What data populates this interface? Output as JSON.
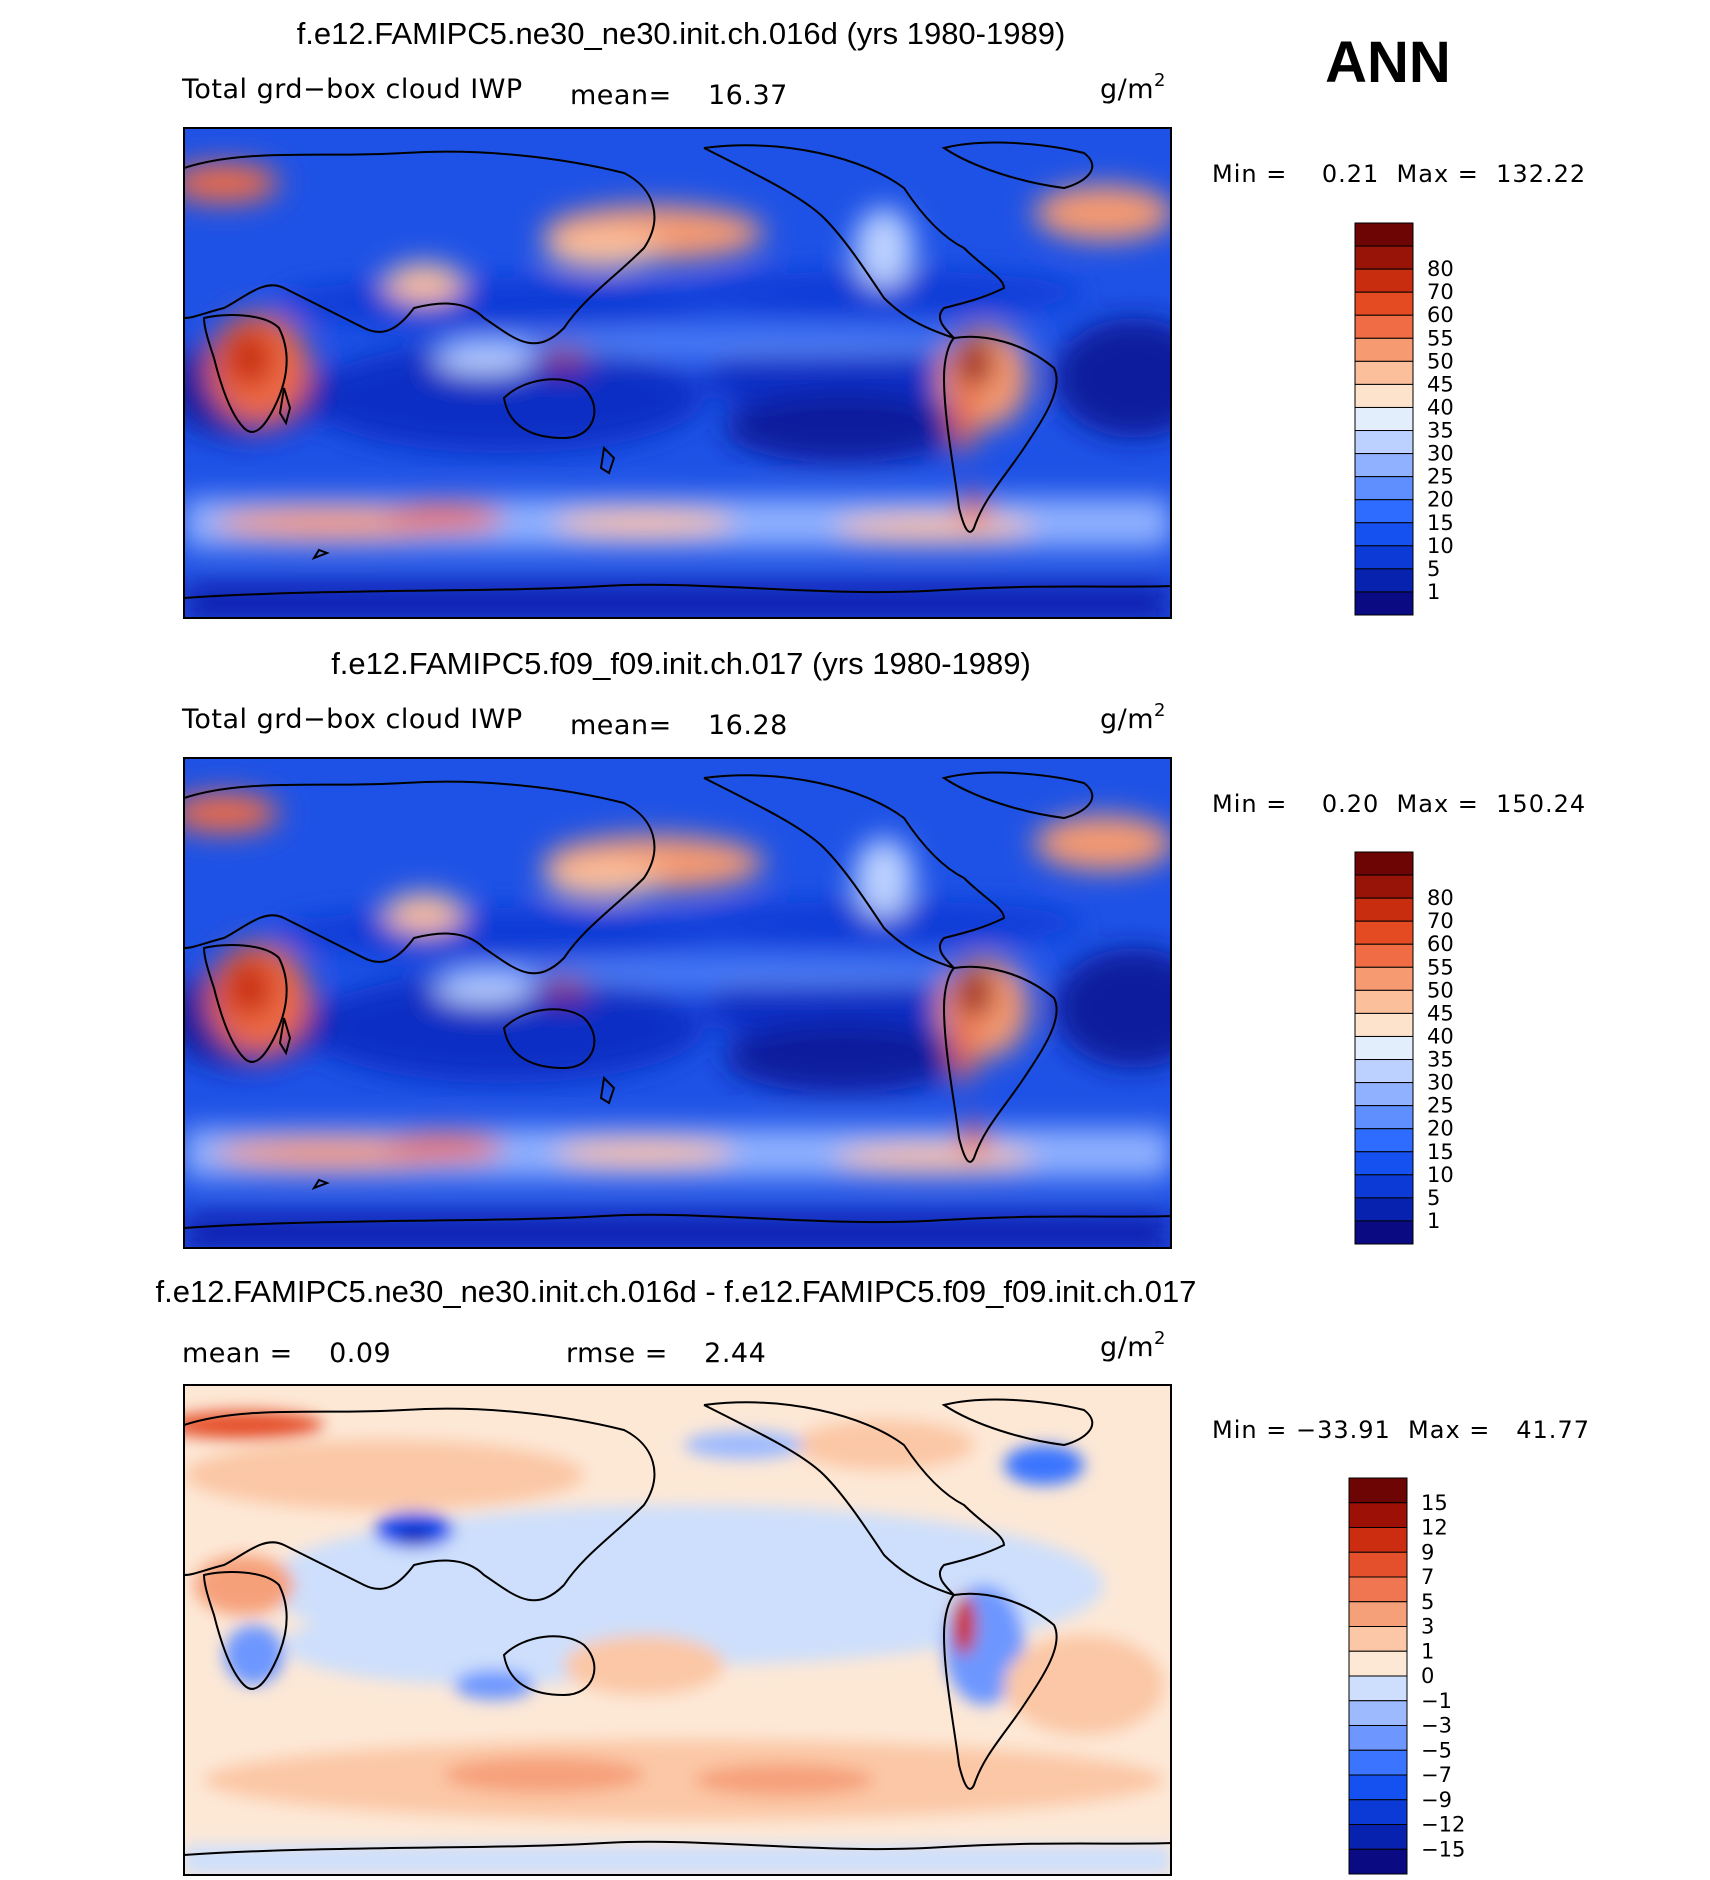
{
  "season": "ANN",
  "colors": {
    "abs_scale": [
      "#0a0a82",
      "#0822b0",
      "#0b3ad6",
      "#1550f0",
      "#2e6cff",
      "#5f8fff",
      "#8fb1ff",
      "#bcd1ff",
      "#e3eefc",
      "#fde3cc",
      "#fbbf9b",
      "#f59a71",
      "#ef6c45",
      "#e44b22",
      "#c92d0f",
      "#991408",
      "#6e0505"
    ],
    "diff_scale": [
      "#0a0a82",
      "#0822b0",
      "#0b3ad6",
      "#1550f0",
      "#3a74ff",
      "#6d97ff",
      "#9dbaff",
      "#cddffc",
      "#fde8d6",
      "#fbc7a6",
      "#f6a07a",
      "#ef7651",
      "#e5502c",
      "#cc2d10",
      "#9c1006",
      "#6e0505"
    ],
    "land_outline": "#000000"
  },
  "panels": [
    {
      "id": "top",
      "title": "f.e12.FAMIPC5.ne30_ne30.init.ch.016d (yrs 1980-1989)",
      "left_label": "Total grd−box cloud IWP",
      "mean_label": "mean=",
      "mean_value": "16.37",
      "units_base": "g/m",
      "units_exp": "2",
      "minmax_text": "Min =    0.21  Max =  132.22"
    },
    {
      "id": "middle",
      "title": "f.e12.FAMIPC5.f09_f09.init.ch.017 (yrs 1980-1989)",
      "left_label": "Total grd−box cloud IWP",
      "mean_label": "mean=",
      "mean_value": "16.28",
      "units_base": "g/m",
      "units_exp": "2",
      "minmax_text": "Min =    0.20  Max =  150.24"
    },
    {
      "id": "bottom",
      "title": "f.e12.FAMIPC5.ne30_ne30.init.ch.016d - f.e12.FAMIPC5.f09_f09.init.ch.017",
      "mean_text": "mean =    0.09",
      "rmse_text": "rmse =    2.44",
      "units_base": "g/m",
      "units_exp": "2",
      "minmax_text": "Min = −33.91  Max =   41.77"
    }
  ],
  "chart_data": [
    {
      "type": "heatmap",
      "title": "f.e12.FAMIPC5.ne30_ne30.init.ch.016d (yrs 1980-1989)",
      "variable": "Total grd-box cloud IWP",
      "units": "g/m2",
      "mean": 16.37,
      "min": 0.21,
      "max": 132.22,
      "colorbar_levels": [
        "80",
        "70",
        "60",
        "55",
        "50",
        "45",
        "40",
        "35",
        "30",
        "25",
        "20",
        "15",
        "10",
        "5",
        "1"
      ]
    },
    {
      "type": "heatmap",
      "title": "f.e12.FAMIPC5.f09_f09.init.ch.017 (yrs 1980-1989)",
      "variable": "Total grd-box cloud IWP",
      "units": "g/m2",
      "mean": 16.28,
      "min": 0.2,
      "max": 150.24,
      "colorbar_levels": [
        "80",
        "70",
        "60",
        "55",
        "50",
        "45",
        "40",
        "35",
        "30",
        "25",
        "20",
        "15",
        "10",
        "5",
        "1"
      ]
    },
    {
      "type": "heatmap",
      "title": "f.e12.FAMIPC5.ne30_ne30.init.ch.016d - f.e12.FAMIPC5.f09_f09.init.ch.017",
      "units": "g/m2",
      "mean": 0.09,
      "rmse": 2.44,
      "min": -33.91,
      "max": 41.77,
      "colorbar_levels": [
        "15",
        "12",
        "9",
        "7",
        "5",
        "3",
        "1",
        "0",
        "−1",
        "−3",
        "−5",
        "−7",
        "−9",
        "−12",
        "−15"
      ]
    }
  ]
}
